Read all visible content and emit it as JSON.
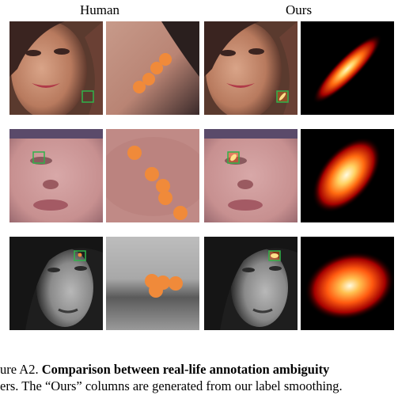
{
  "headers": {
    "human": "Human",
    "ours": "Ours"
  },
  "caption": {
    "line1_prefix": "ure A2.",
    "line1_bold": "Comparison between real-life annotation ambiguity",
    "line2": "ers. The “Ours” columns are generated from our label smoothing."
  },
  "colors": {
    "dot": "#f08a3a",
    "box": "#2fb34a",
    "heat_core": "#fff7c8",
    "heat_mid": "#ff6a10",
    "heat_edge": "#a30000"
  }
}
